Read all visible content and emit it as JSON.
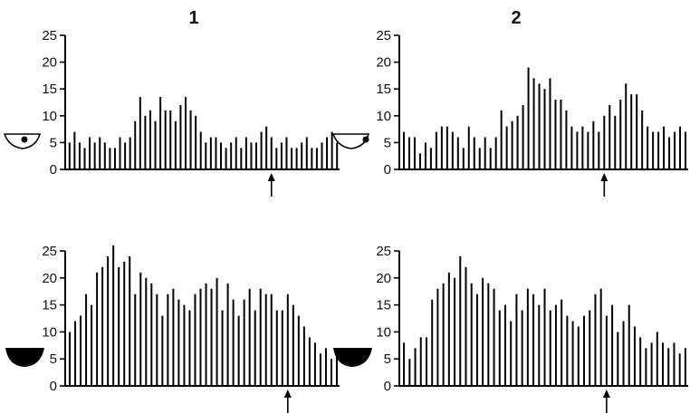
{
  "colors": {
    "bar": "#000000",
    "axis": "#000000",
    "background": "#ffffff"
  },
  "chart_data": [
    {
      "type": "bar",
      "title": "1",
      "row": "top",
      "icon": "open-eye-icon",
      "ylim": [
        0,
        25
      ],
      "yticks": [
        "0",
        "5",
        "10",
        "15",
        "20",
        "25"
      ],
      "grid": false,
      "marker_index": 40,
      "values": [
        5,
        7,
        5,
        4,
        6,
        5,
        6,
        5,
        4,
        4,
        6,
        5,
        6,
        9,
        13.5,
        10,
        11,
        9,
        13.5,
        11,
        11,
        9,
        12,
        13.5,
        11,
        10,
        7,
        5,
        6,
        6,
        5,
        4,
        5,
        6,
        4,
        6,
        5,
        5,
        7,
        8,
        6,
        4,
        5,
        6,
        4,
        4,
        5,
        6,
        4,
        4,
        5,
        6,
        7,
        5
      ]
    },
    {
      "type": "bar",
      "title": "2",
      "row": "top",
      "icon": "open-eye-icon",
      "ylim": [
        0,
        25
      ],
      "yticks": [
        "0",
        "5",
        "10",
        "15",
        "20",
        "25"
      ],
      "grid": false,
      "marker_index": 37,
      "values": [
        7,
        6,
        6,
        3,
        5,
        4,
        7,
        8,
        8,
        7,
        6,
        4,
        8,
        6,
        4,
        6,
        4,
        6,
        11,
        8,
        9,
        10,
        12,
        19,
        17,
        16,
        15,
        17,
        13,
        13,
        11,
        8,
        7,
        8,
        7,
        9,
        7,
        10,
        12,
        10,
        13,
        16,
        14,
        14,
        11,
        8,
        7,
        7,
        8,
        6,
        7,
        8,
        7
      ]
    },
    {
      "type": "bar",
      "title": "",
      "row": "bottom",
      "icon": "closed-eye-icon",
      "ylim": [
        0,
        25
      ],
      "yticks": [
        "0",
        "5",
        "10",
        "15",
        "20",
        "25"
      ],
      "grid": false,
      "marker_index": 40,
      "values": [
        10,
        12,
        13,
        17,
        15,
        21,
        22,
        24,
        26,
        22,
        23,
        24,
        17,
        21,
        20,
        19,
        17,
        13,
        17,
        18,
        16,
        15,
        14,
        17,
        18,
        19,
        18,
        20,
        14,
        19,
        16,
        13,
        16,
        18,
        14,
        18,
        17,
        17,
        14,
        14,
        17,
        15,
        13,
        11,
        9,
        8,
        6,
        7,
        5,
        6
      ]
    },
    {
      "type": "bar",
      "title": "",
      "row": "bottom",
      "icon": "closed-eye-icon",
      "ylim": [
        0,
        25
      ],
      "yticks": [
        "0",
        "5",
        "10",
        "15",
        "20",
        "25"
      ],
      "grid": false,
      "marker_index": 36,
      "values": [
        8,
        5,
        7,
        9,
        9,
        16,
        18,
        19,
        21,
        20,
        24,
        22,
        19,
        17,
        20,
        19,
        18,
        14,
        15,
        12,
        17,
        14,
        18,
        17,
        15,
        18,
        14,
        15,
        16,
        13,
        12,
        11,
        13,
        14,
        17,
        18,
        13,
        15,
        10,
        12,
        15,
        11,
        9,
        7,
        8,
        10,
        8,
        7,
        8,
        6,
        7
      ]
    }
  ]
}
